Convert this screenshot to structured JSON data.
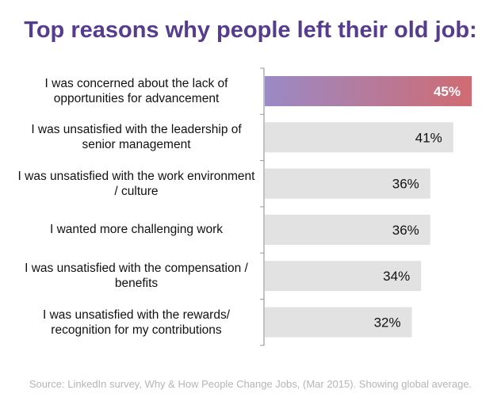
{
  "chart_data": {
    "type": "bar",
    "orientation": "horizontal",
    "title": "Top reasons why people left their old job:",
    "categories": [
      "I was concerned about the lack of opportunities for advancement",
      "I was unsatisfied with the leadership of senior management",
      "I was unsatisfied with the work environment / culture",
      "I wanted more challenging work",
      "I was unsatisfied with the compensation / benefits",
      "I was unsatisfied with the rewards/ recognition for my contributions"
    ],
    "values": [
      45,
      41,
      36,
      36,
      34,
      32
    ],
    "data_labels": [
      "45%",
      "41%",
      "36%",
      "36%",
      "34%",
      "32%"
    ],
    "unit": "%",
    "xlim": [
      0,
      50
    ],
    "grid": false,
    "highlight_gradient": [
      "#9a8ac6",
      "#d06b72"
    ],
    "bar_color": "#e2e2e2",
    "source": "Source: LinkedIn survey, Why & How People Change Jobs, (Mar 2015). Showing global average."
  }
}
